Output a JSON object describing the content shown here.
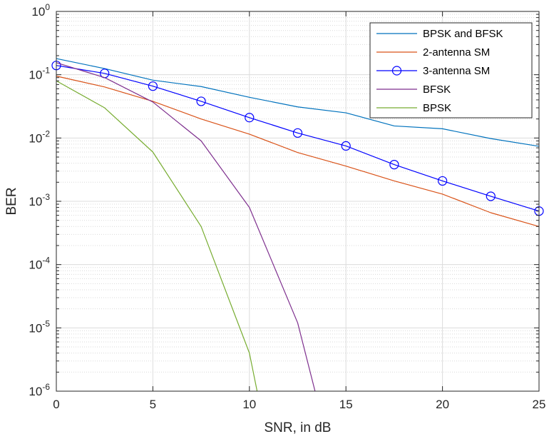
{
  "chart_data": {
    "type": "line",
    "title": "",
    "xlabel": "SNR, in dB",
    "ylabel": "BER",
    "xlim": [
      0,
      25
    ],
    "ylim": [
      1e-06,
      1
    ],
    "yscale": "log",
    "grid": "on (major and minor)",
    "legend_location": "top-right",
    "x_ticks": [
      "0",
      "5",
      "10",
      "15",
      "20",
      "25"
    ],
    "y_ticks": [
      {
        "base": "10",
        "exp": "-6",
        "value": 1e-06
      },
      {
        "base": "10",
        "exp": "-5",
        "value": 1e-05
      },
      {
        "base": "10",
        "exp": "-4",
        "value": 0.0001
      },
      {
        "base": "10",
        "exp": "-3",
        "value": 0.001
      },
      {
        "base": "10",
        "exp": "-2",
        "value": 0.01
      },
      {
        "base": "10",
        "exp": "-1",
        "value": 0.1
      },
      {
        "base": "10",
        "exp": "0",
        "value": 1
      }
    ],
    "series": [
      {
        "name": "BPSK and BFSK",
        "color": "#0072BD",
        "marker": "none",
        "x": [
          0,
          2.5,
          5,
          7.5,
          10,
          12.5,
          15,
          17.5,
          20,
          22.5,
          25
        ],
        "y": [
          0.18,
          0.125,
          0.082,
          0.065,
          0.044,
          0.031,
          0.025,
          0.0155,
          0.014,
          0.0098,
          0.0074
        ]
      },
      {
        "name": "2-antenna SM",
        "color": "#D95319",
        "marker": "none",
        "x": [
          0,
          2.5,
          5,
          7.5,
          10,
          12.5,
          15,
          17.5,
          20,
          22.5,
          25
        ],
        "y": [
          0.095,
          0.064,
          0.038,
          0.02,
          0.0115,
          0.0059,
          0.0036,
          0.0021,
          0.0013,
          0.00066,
          0.0004
        ]
      },
      {
        "name": "3-antenna SM",
        "color": "#0000FF",
        "marker": "circle",
        "x": [
          0,
          2.5,
          5,
          7.5,
          10,
          12.5,
          15,
          17.5,
          20,
          22.5,
          25
        ],
        "y": [
          0.14,
          0.105,
          0.066,
          0.038,
          0.021,
          0.012,
          0.0075,
          0.0038,
          0.0021,
          0.0012,
          0.0007
        ]
      },
      {
        "name": "BFSK",
        "color": "#7E2F8E",
        "marker": "none",
        "x": [
          0,
          2.5,
          5,
          7.5,
          10,
          12.5,
          13.4
        ],
        "y": [
          0.155,
          0.09,
          0.037,
          0.009,
          0.0008,
          1.2e-05,
          1e-06
        ]
      },
      {
        "name": "BPSK",
        "color": "#77AC30",
        "marker": "none",
        "x": [
          0,
          2.5,
          5,
          7.5,
          10,
          10.4
        ],
        "y": [
          0.08,
          0.03,
          0.006,
          0.0004,
          4e-06,
          1e-06
        ]
      }
    ]
  }
}
